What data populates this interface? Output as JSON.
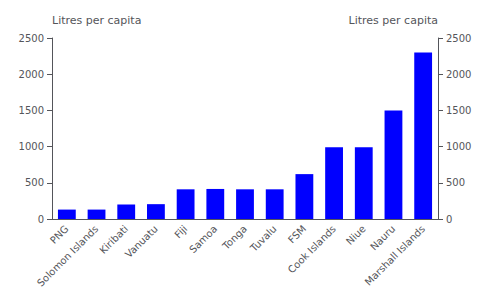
{
  "chart_data": {
    "type": "bar",
    "categories": [
      "PNG",
      "Solomon Islands",
      "Kiribati",
      "Vanuatu",
      "Fiji",
      "Samoa",
      "Tonga",
      "Tuvalu",
      "FSM",
      "Cook Islands",
      "Niue",
      "Nauru",
      "Marshall Islands"
    ],
    "values": [
      130,
      130,
      200,
      205,
      410,
      415,
      410,
      410,
      620,
      990,
      990,
      1500,
      2300
    ],
    "color": "#0000ff",
    "ylabel": "Litres per capita",
    "y2label": "Litres per capita",
    "ylim": [
      0,
      2500
    ],
    "yticks": [
      0,
      500,
      1000,
      1500,
      2000,
      2500
    ],
    "y2lim": [
      0,
      2500
    ],
    "y2ticks": [
      0,
      500,
      1000,
      1500,
      2000,
      2500
    ],
    "grid": false
  }
}
